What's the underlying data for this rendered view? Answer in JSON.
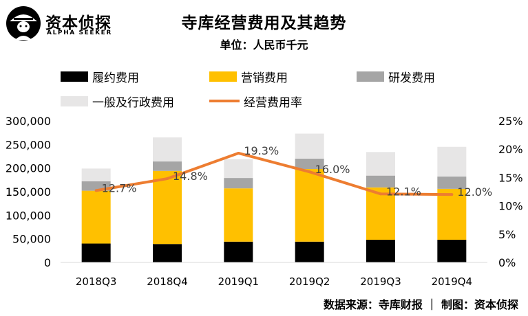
{
  "brand": {
    "name": "资本侦探",
    "tagline": "ALPHA SEEKER"
  },
  "chart_data": {
    "type": "bar",
    "stacked": true,
    "title": "寺库经营费用及其趋势",
    "subtitle": "单位：人民币千元",
    "categories": [
      "2018Q3",
      "2018Q4",
      "2019Q1",
      "2019Q2",
      "2019Q3",
      "2019Q4"
    ],
    "series": [
      {
        "name": "履约费用",
        "color": "#000000",
        "values": [
          40000,
          39000,
          44000,
          44000,
          48000,
          48000
        ]
      },
      {
        "name": "营销费用",
        "color": "#FFC000",
        "values": [
          112000,
          155000,
          113000,
          154000,
          111000,
          108000
        ]
      },
      {
        "name": "研发费用",
        "color": "#A5A5A5",
        "values": [
          20000,
          20000,
          22000,
          22000,
          25000,
          26000
        ]
      },
      {
        "name": "一般及行政费用",
        "color": "#E7E6E6",
        "values": [
          27000,
          51000,
          40000,
          53000,
          50000,
          63000
        ]
      }
    ],
    "line": {
      "name": "经营费用率",
      "color": "#ED7D31",
      "axis": "right",
      "values": [
        12.7,
        14.8,
        19.3,
        16.0,
        12.1,
        12.0
      ],
      "labels": [
        "12.7%",
        "14.8%",
        "19.3%",
        "16.0%",
        "12.1%",
        "12.0%"
      ]
    },
    "y_left": {
      "min": 0,
      "max": 300000,
      "ticks": [
        "0",
        "50,000",
        "100,000",
        "150,000",
        "200,000",
        "250,000",
        "300,000"
      ]
    },
    "y_right": {
      "min": 0,
      "max": 25,
      "ticks": [
        "0%",
        "5%",
        "10%",
        "15%",
        "20%",
        "25%"
      ]
    },
    "legend_position": "top",
    "grid": false
  },
  "footer": {
    "source": "数据来源：寺库财报 ｜ 制图：资本侦探"
  }
}
